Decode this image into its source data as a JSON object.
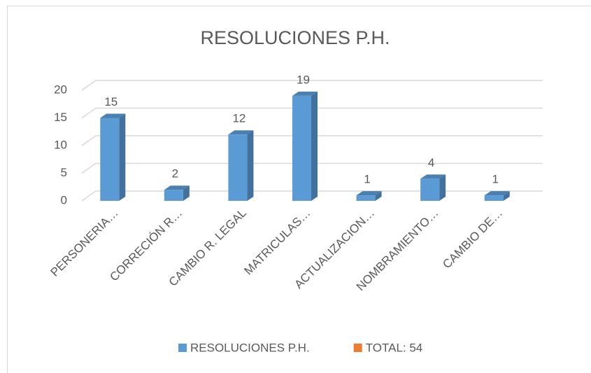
{
  "chart_data": {
    "type": "bar",
    "title": "RESOLUCIONES P.H.",
    "categories": [
      "PERSONERIA…",
      "CORRECIÓN R…",
      "CAMBIO R. LEGAL",
      "MATRICULAS…",
      "ACTUALIZACION…",
      "NOMBRAMIENTO…",
      "CAMBIO DE…"
    ],
    "series": [
      {
        "name": "RESOLUCIONES P.H.",
        "color": "#5b9bd5",
        "values": [
          15,
          2,
          12,
          19,
          1,
          4,
          1
        ]
      },
      {
        "name": "TOTAL: 54",
        "color": "#ed7d31",
        "values": [
          null,
          null,
          null,
          null,
          null,
          null,
          null
        ]
      }
    ],
    "ylim": [
      0,
      20
    ],
    "yticks": [
      0,
      5,
      10,
      15,
      20
    ],
    "grid": true,
    "legend": "bottom"
  }
}
